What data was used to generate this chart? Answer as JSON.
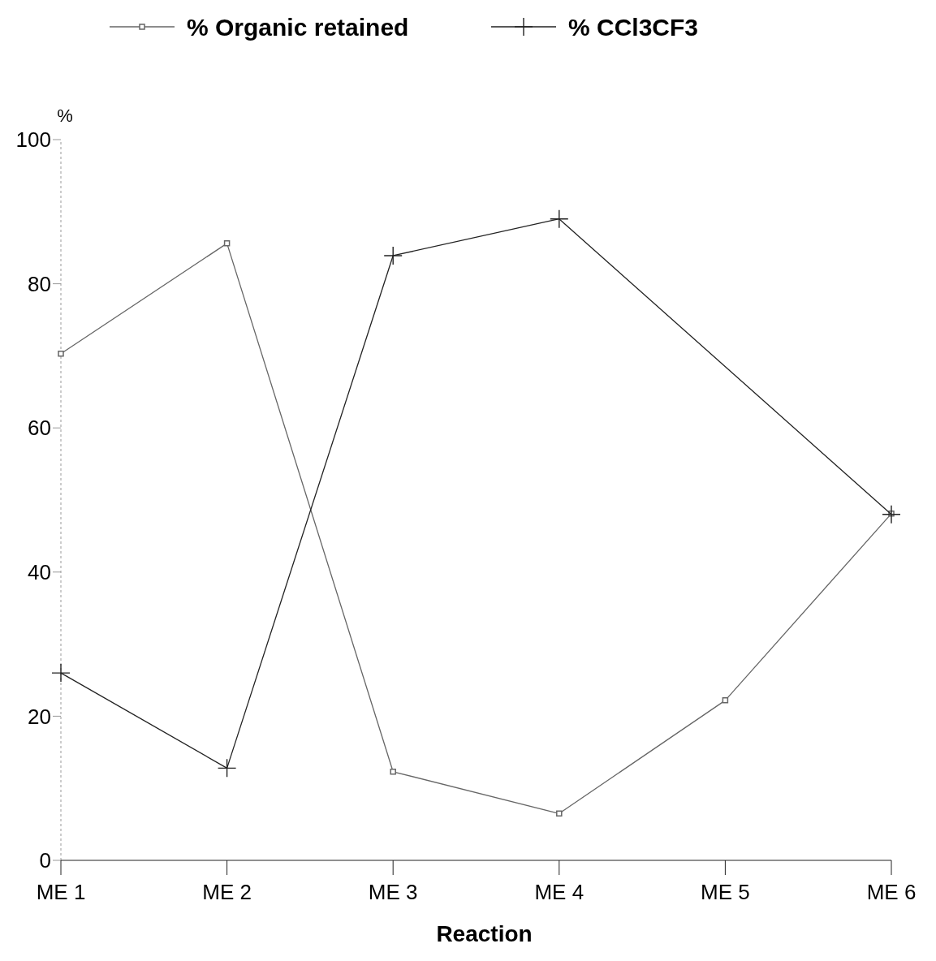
{
  "chart_data": {
    "type": "line",
    "xlabel": "Reaction",
    "ylabel": "%",
    "categories": [
      "ME 1",
      "ME 2",
      "ME 3",
      "ME 4",
      "ME 5",
      "ME 6"
    ],
    "series": [
      {
        "name": "% Organic retained",
        "color": "#666666",
        "marker": "square",
        "values": [
          70.3,
          85.6,
          12.3,
          6.5,
          22.2,
          48.1
        ]
      },
      {
        "name": "% CCl3CF3",
        "color": "#222222",
        "marker": "cross",
        "values": [
          26,
          12.8,
          83.9,
          89,
          null,
          48
        ]
      }
    ],
    "ylim": [
      0,
      100
    ],
    "yticks": [
      0,
      20,
      40,
      60,
      80,
      100
    ],
    "legend": "top",
    "grid": false
  }
}
